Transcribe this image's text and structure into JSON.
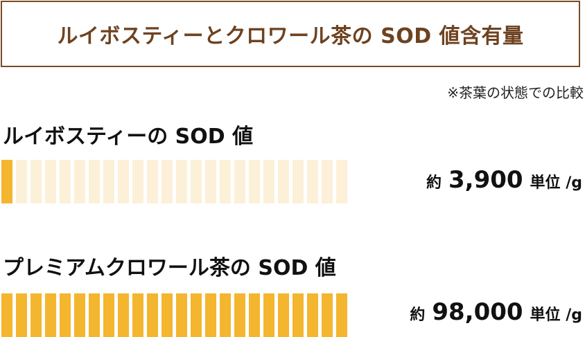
{
  "title": "ルイボスティーとクロワール茶の SOD 値含有量",
  "note": "※茶葉の状態での比較",
  "colors": {
    "title": "#6e4220",
    "border": "#7a4a22",
    "filled": "#f4b52f",
    "empty": "#fdf0d8"
  },
  "chart_data": {
    "type": "bar",
    "orientation": "horizontal",
    "segment_count": 24,
    "scale_max": 98000,
    "series": [
      {
        "name": "ルイボスティーの SOD 値",
        "value": 3900,
        "approx": "約",
        "value_label": "3,900",
        "unit": "単位 /g"
      },
      {
        "name": "プレミアムクロワール茶の SOD 値",
        "value": 98000,
        "approx": "約",
        "value_label": "98,000",
        "unit": "単位 /g"
      }
    ]
  }
}
